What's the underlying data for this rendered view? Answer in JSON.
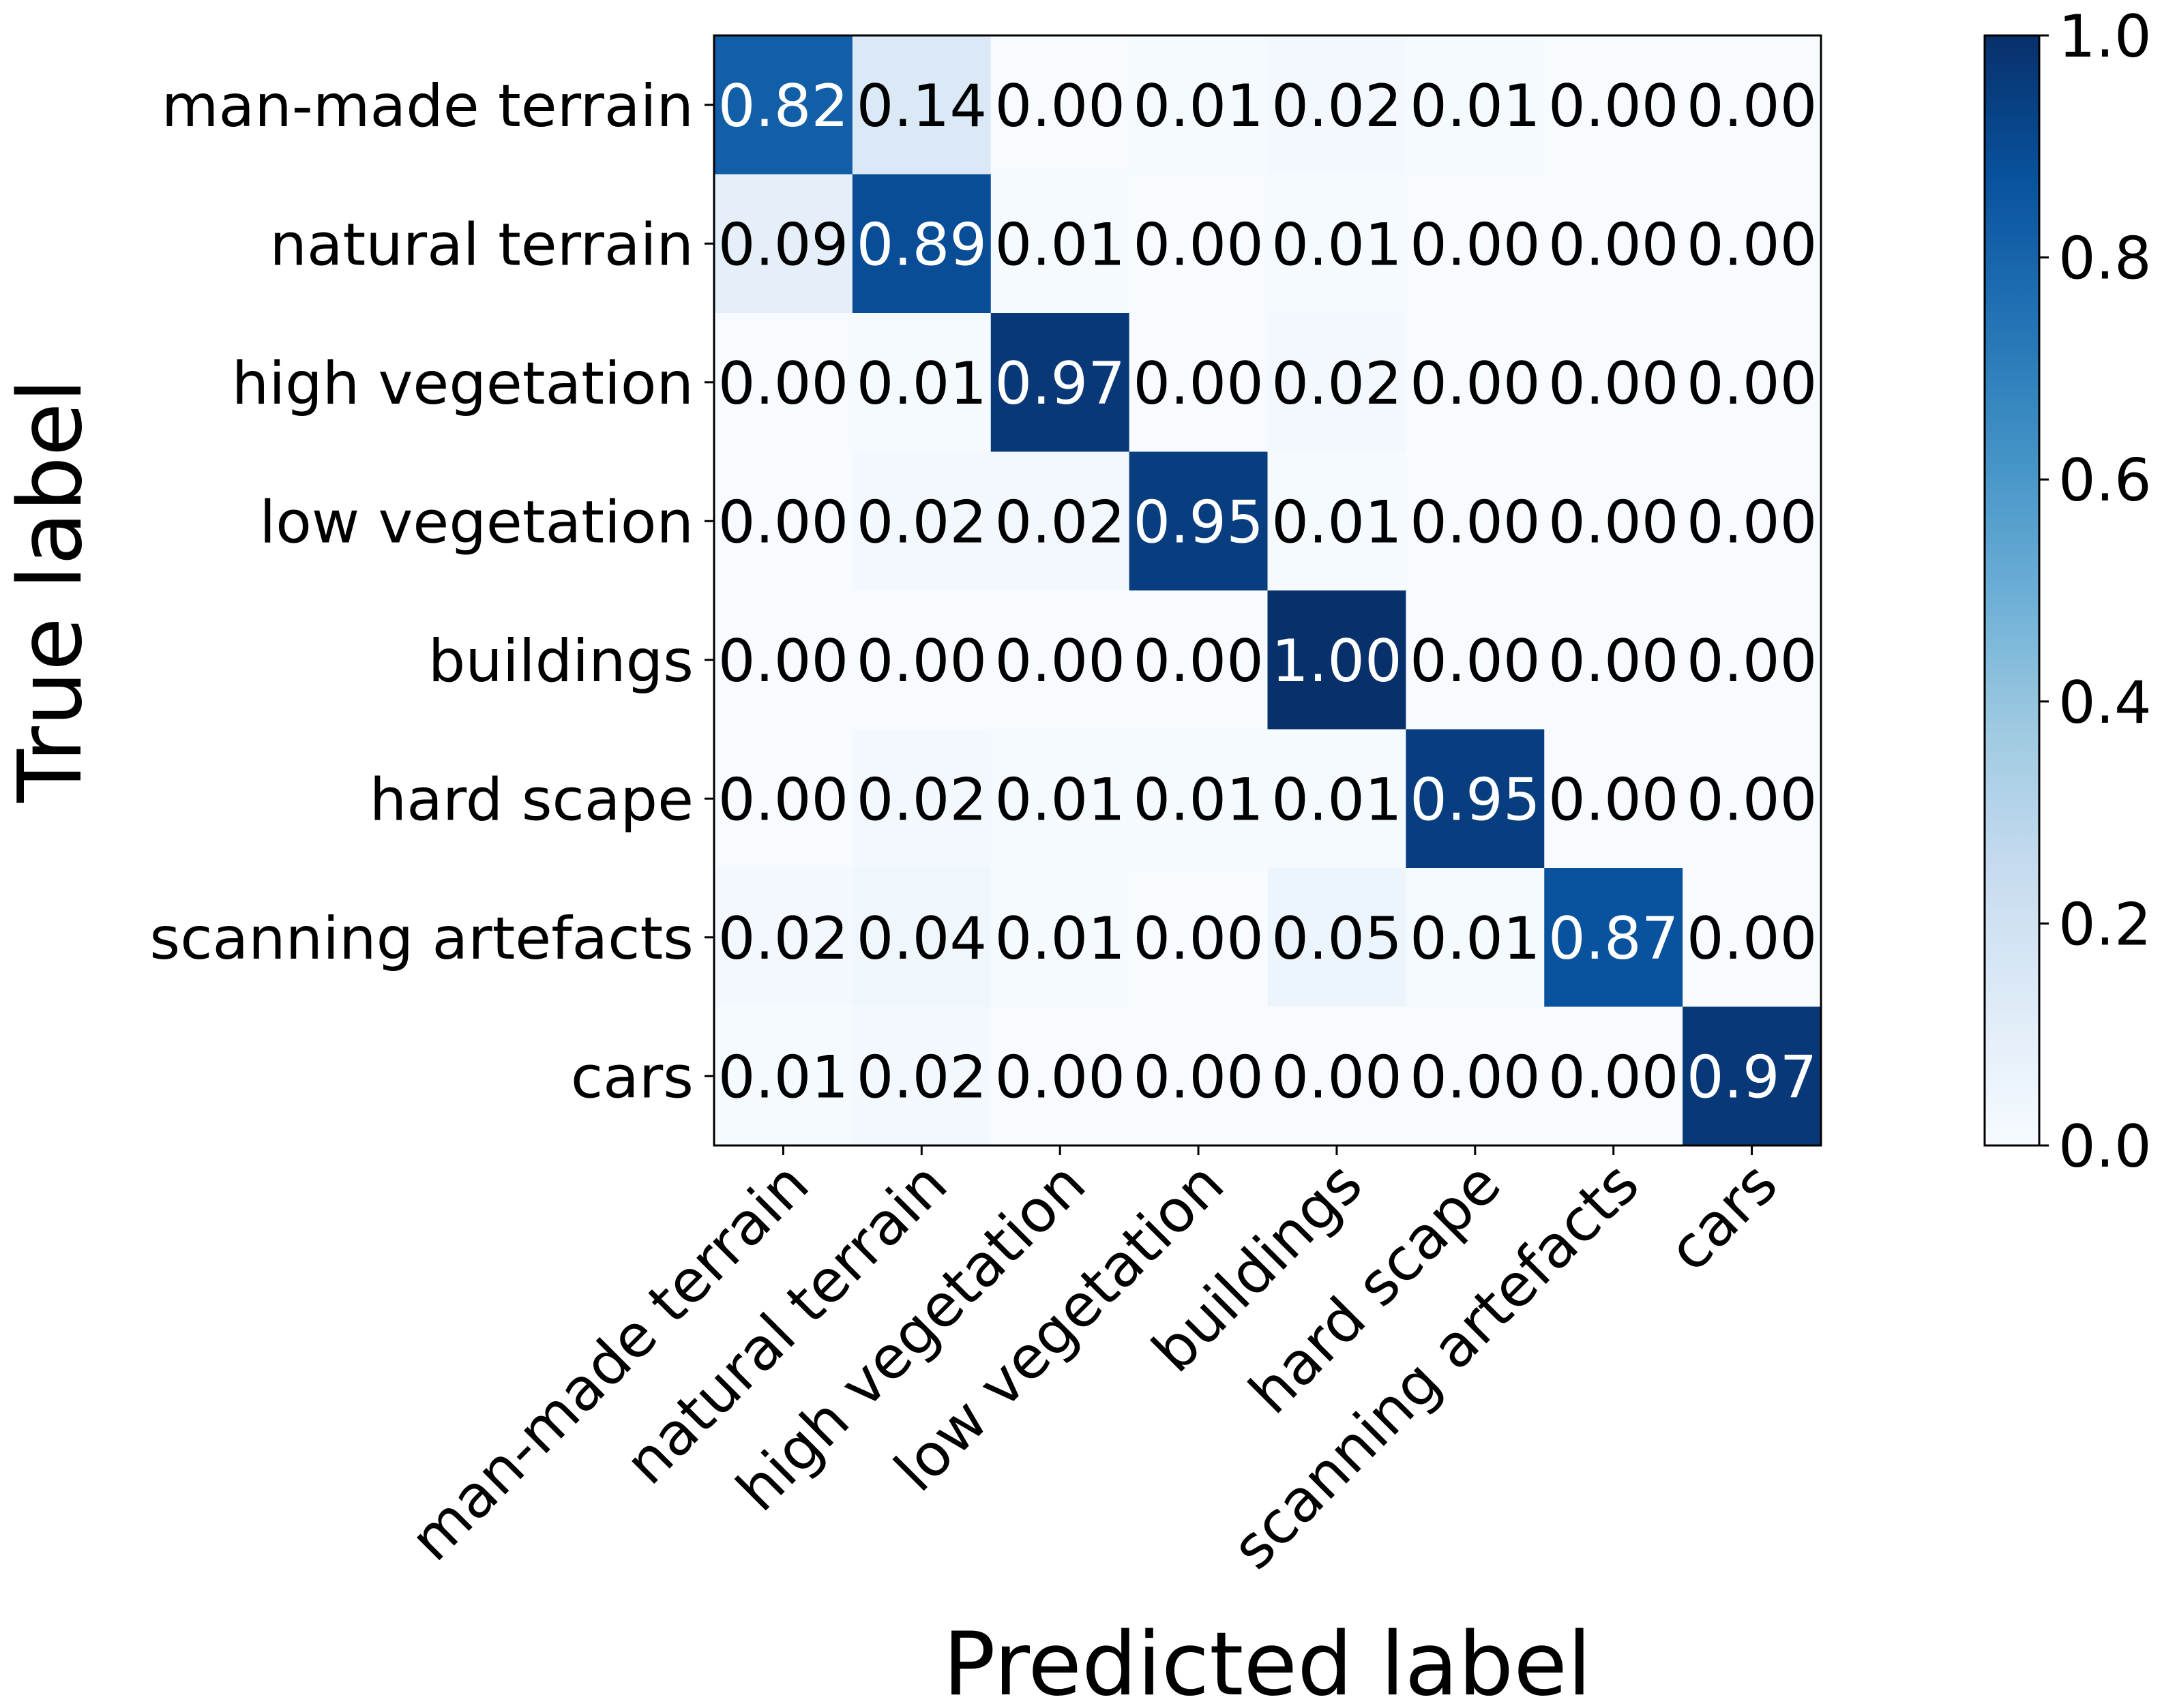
{
  "chart_data": {
    "type": "heatmap",
    "title": "",
    "xlabel": "Predicted label",
    "ylabel": "True label",
    "categories": [
      "man-made terrain",
      "natural terrain",
      "high vegetation",
      "low vegetation",
      "buildings",
      "hard scape",
      "scanning artefacts",
      "cars"
    ],
    "matrix": [
      [
        0.82,
        0.14,
        0.0,
        0.01,
        0.02,
        0.01,
        0.0,
        0.0
      ],
      [
        0.09,
        0.89,
        0.01,
        0.0,
        0.01,
        0.0,
        0.0,
        0.0
      ],
      [
        0.0,
        0.01,
        0.97,
        0.0,
        0.02,
        0.0,
        0.0,
        0.0
      ],
      [
        0.0,
        0.02,
        0.02,
        0.95,
        0.01,
        0.0,
        0.0,
        0.0
      ],
      [
        0.0,
        0.0,
        0.0,
        0.0,
        1.0,
        0.0,
        0.0,
        0.0
      ],
      [
        0.0,
        0.02,
        0.01,
        0.01,
        0.01,
        0.95,
        0.0,
        0.0
      ],
      [
        0.02,
        0.04,
        0.01,
        0.0,
        0.05,
        0.01,
        0.87,
        0.0
      ],
      [
        0.01,
        0.02,
        0.0,
        0.0,
        0.0,
        0.0,
        0.0,
        0.97
      ]
    ],
    "value_format_decimals": 2,
    "colormap": "Blues",
    "colorbar": {
      "range": [
        0.0,
        1.0
      ],
      "ticks": [
        "0.0",
        "0.2",
        "0.4",
        "0.6",
        "0.8",
        "1.0"
      ]
    }
  }
}
